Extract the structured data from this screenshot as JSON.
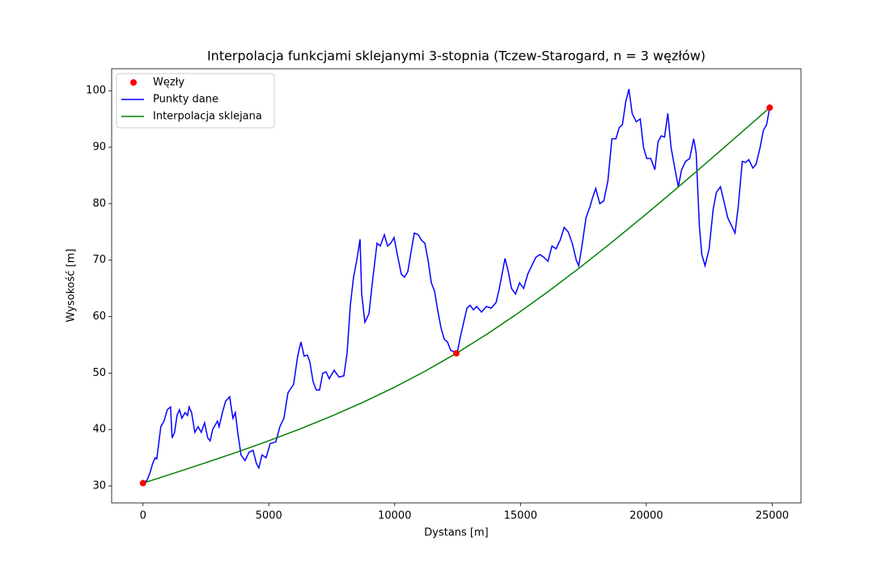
{
  "chart_data": {
    "type": "line",
    "title": "Interpolacja funkcjami sklejanymi 3-stopnia (Tczew-Starogard, n = 3 węzłów)",
    "x_label": "Dystans [m]",
    "y_label": "Wysokość [m]",
    "xlim": [
      -1245,
      26145
    ],
    "ylim": [
      27,
      103.9
    ],
    "xticks": [
      0,
      5000,
      10000,
      15000,
      20000,
      25000
    ],
    "yticks": [
      30,
      40,
      50,
      60,
      70,
      80,
      90,
      100
    ],
    "legend": "upper left",
    "series": [
      {
        "name": "Węzły",
        "type": "scatter",
        "color": "#ff0000",
        "x": [
          0,
          12450,
          24900
        ],
        "values": [
          30.5,
          53.5,
          97
        ]
      },
      {
        "name": "Punkty dane",
        "type": "line",
        "color": "#0000ff",
        "x": [
          0,
          161,
          290,
          386,
          483,
          547,
          611,
          708,
          837,
          965,
          1094,
          1159,
          1255,
          1352,
          1448,
          1545,
          1673,
          1770,
          1834,
          1931,
          2060,
          2188,
          2317,
          2446,
          2574,
          2671,
          2767,
          2960,
          3025,
          3154,
          3282,
          3443,
          3572,
          3669,
          3765,
          3894,
          4055,
          4216,
          4377,
          4505,
          4602,
          4730,
          4891,
          5052,
          5278,
          5438,
          5599,
          5760,
          5985,
          6146,
          6275,
          6404,
          6532,
          6629,
          6758,
          6887,
          7015,
          7144,
          7273,
          7401,
          7594,
          7788,
          7981,
          8109,
          8238,
          8367,
          8495,
          8624,
          8689,
          8817,
          8978,
          9139,
          9300,
          9429,
          9590,
          9718,
          9847,
          9976,
          10105,
          10265,
          10394,
          10523,
          10652,
          10780,
          10941,
          11070,
          11199,
          11327,
          11456,
          11585,
          11714,
          11842,
          11971,
          12100,
          12229,
          12357,
          12486,
          12615,
          12743,
          12872,
          13001,
          13130,
          13258,
          13451,
          13644,
          13837,
          14030,
          14159,
          14288,
          14384,
          14513,
          14642,
          14803,
          14963,
          15125,
          15286,
          15446,
          15607,
          15768,
          15929,
          16090,
          16251,
          16412,
          16573,
          16734,
          16895,
          17055,
          17216,
          17313,
          17442,
          17602,
          17763,
          17860,
          17989,
          18150,
          18310,
          18471,
          18632,
          18793,
          18922,
          19050,
          19179,
          19307,
          19436,
          19598,
          19758,
          19887,
          20016,
          20177,
          20338,
          20466,
          20595,
          20724,
          20853,
          20981,
          21142,
          21271,
          21400,
          21561,
          21722,
          21882,
          21979,
          22108,
          22204,
          22333,
          22494,
          22655,
          22783,
          22944,
          23105,
          23234,
          23395,
          23524,
          23652,
          23813,
          23942,
          24071,
          24232,
          24361,
          24522,
          24651,
          24780,
          24900
        ],
        "values": [
          30.5,
          31,
          32.5,
          34,
          35,
          34.8,
          37,
          40.5,
          41.5,
          43.5,
          44,
          38.5,
          39.5,
          42.5,
          43.5,
          42,
          43,
          42.5,
          44,
          43,
          39.5,
          40.5,
          39.5,
          41.2,
          38.5,
          38,
          40,
          41.5,
          40.5,
          43,
          45,
          45.8,
          42,
          43,
          39.5,
          35.5,
          34.5,
          36,
          36.3,
          34,
          33.2,
          35.5,
          35,
          37.5,
          37.8,
          40.5,
          42,
          46.5,
          48,
          53,
          55.5,
          53,
          53.2,
          52,
          48.5,
          47,
          47,
          50,
          50.2,
          49,
          50.5,
          49.3,
          49.5,
          53.5,
          62,
          67,
          70,
          73.7,
          64,
          59,
          60.5,
          67,
          73,
          72.5,
          74.5,
          72.5,
          73,
          74,
          71,
          67.5,
          67,
          68,
          71.5,
          74.8,
          74.5,
          73.5,
          73,
          70,
          66,
          64.5,
          61,
          58,
          56,
          55.5,
          54,
          53.8,
          53.6,
          56.5,
          59,
          61.5,
          62,
          61.2,
          61.8,
          60.8,
          61.8,
          61.5,
          62.5,
          65,
          68,
          70.3,
          68,
          65,
          64,
          66,
          65,
          67.5,
          69,
          70.5,
          71,
          70.5,
          69.8,
          72.5,
          72,
          73.5,
          75.8,
          75,
          73,
          70,
          69,
          72.5,
          77.5,
          79.5,
          81,
          82.7,
          80,
          80.5,
          84,
          91.5,
          91.5,
          93.5,
          94,
          98,
          100.3,
          96,
          94.5,
          95,
          90,
          88,
          88,
          86,
          91,
          92,
          91.8,
          96,
          90,
          86,
          83,
          86,
          87.5,
          88,
          91.5,
          89,
          76,
          71,
          69,
          72,
          79,
          82,
          83,
          80,
          77.5,
          76,
          74.8,
          79.5,
          87.5,
          87.3,
          87.8,
          86.3,
          87,
          90,
          93,
          94,
          97
        ]
      },
      {
        "name": "Interpolacja sklejana",
        "type": "line",
        "color": "#008000",
        "x": [
          0,
          1245,
          2490,
          3735,
          4980,
          6225,
          7470,
          8715,
          9960,
          11205,
          12450,
          13695,
          14940,
          16185,
          17430,
          18675,
          19920,
          21165,
          22410,
          23655,
          24900
        ],
        "values": [
          30.5,
          32.29,
          34.12,
          36.0,
          37.98,
          40.08,
          42.33,
          44.77,
          47.42,
          50.32,
          53.5,
          56.97,
          60.72,
          64.72,
          68.93,
          73.33,
          77.88,
          82.55,
          87.32,
          92.14,
          97
        ]
      }
    ]
  }
}
